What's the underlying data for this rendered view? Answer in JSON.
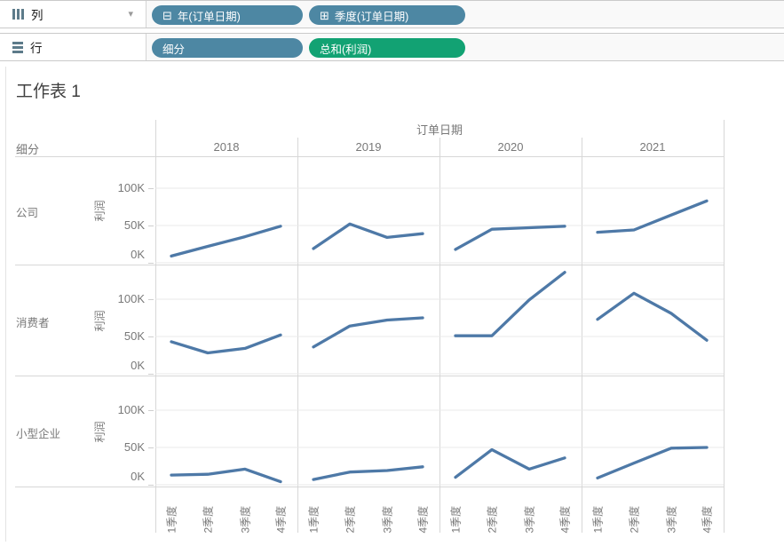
{
  "shelves": {
    "columns": {
      "label": "列",
      "pills": [
        {
          "text": "年(订单日期)",
          "icon": "⊟",
          "type": "blue"
        },
        {
          "text": "季度(订单日期)",
          "icon": "⊞",
          "type": "blue"
        }
      ]
    },
    "rows": {
      "label": "行",
      "pills": [
        {
          "text": "细分",
          "type": "blue"
        },
        {
          "text": "总和(利润)",
          "type": "green"
        }
      ]
    }
  },
  "title": "工作表 1",
  "colors": {
    "pill_blue": "#4d87a3",
    "pill_green": "#12a273",
    "line": "#4e79a7",
    "header_text": "#787878"
  },
  "chart_data": {
    "type": "line",
    "column_dimension": "订单日期",
    "row_dimension": "细分",
    "ylabel": "利润",
    "yticks": [
      "100K",
      "50K",
      "0K"
    ],
    "ytick_values": [
      100,
      50,
      0
    ],
    "ylim": [
      -5,
      143
    ],
    "grid": true,
    "line_color": "#4e79a7",
    "years": [
      "2018",
      "2019",
      "2020",
      "2021"
    ],
    "quarters": [
      "1季度",
      "2季度",
      "3季度",
      "4季度"
    ],
    "unit": "K",
    "series": [
      {
        "segment": "公司",
        "values": {
          "2018": [
            9,
            22,
            35,
            49
          ],
          "2019": [
            19,
            52,
            34,
            39
          ],
          "2020": [
            18,
            45,
            47,
            49
          ],
          "2021": [
            41,
            44,
            64,
            83
          ]
        }
      },
      {
        "segment": "消费者",
        "values": {
          "2018": [
            43,
            28,
            34,
            52
          ],
          "2019": [
            36,
            64,
            72,
            75
          ],
          "2020": [
            51,
            51,
            99,
            136
          ],
          "2021": [
            73,
            108,
            81,
            45
          ]
        }
      },
      {
        "segment": "小型企业",
        "values": {
          "2018": [
            13,
            14,
            21,
            4
          ],
          "2019": [
            7,
            17,
            19,
            24
          ],
          "2020": [
            10,
            47,
            21,
            36
          ],
          "2021": [
            9,
            29,
            49,
            50
          ]
        }
      }
    ]
  }
}
